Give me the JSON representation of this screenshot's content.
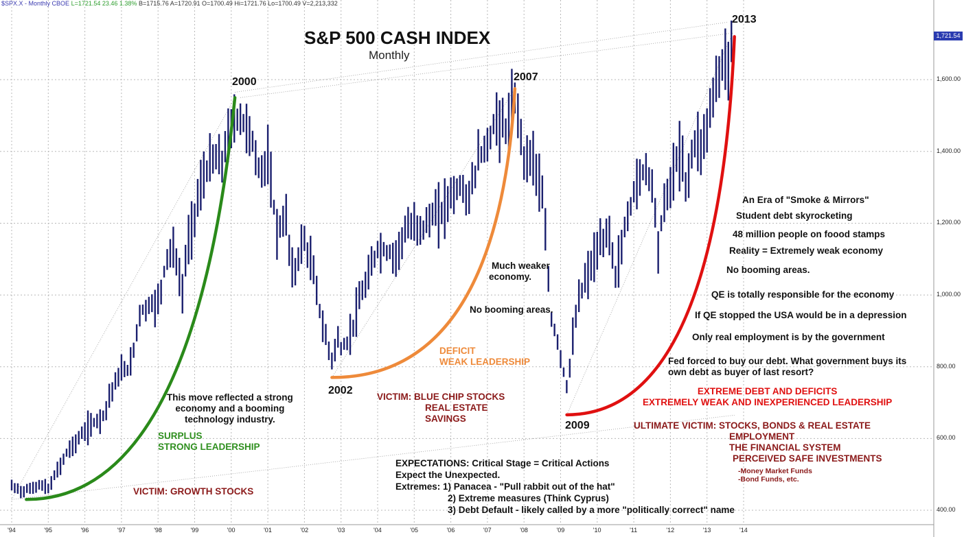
{
  "header": {
    "symbol": "$SPX.X - Monthly",
    "exchange": "CBOE",
    "change": "L=1721.54  23.46  1.38%",
    "values": "B=1715.76  A=1720.91  O=1700.49  Hi=1721.76  Lo=1700.49  V=2,213,332"
  },
  "chart_data": {
    "type": "bar",
    "title": "S&P 500 CASH INDEX",
    "subtitle": "Monthly",
    "ylim": [
      370,
      1760
    ],
    "xlim": [
      1993.95,
      2014.15
    ],
    "y_ticks": [
      "400.00",
      "600.00",
      "800.00",
      "1,000.00",
      "1,200.00",
      "1,400.00",
      "1,600.00"
    ],
    "x_ticks": [
      "'94",
      "'95",
      "'96",
      "'97",
      "'98",
      "'99",
      "'00",
      "'01",
      "'02",
      "'03",
      "'04",
      "'05",
      "'06",
      "'07",
      "'08",
      "'09",
      "'10",
      "'11",
      "'12",
      "'13",
      "'14"
    ],
    "last_price": "1,721.54",
    "series": [
      {
        "values": [
          [
            1994.0,
            466
          ],
          [
            1994.25,
            455
          ],
          [
            1994.5,
            458
          ],
          [
            1994.75,
            472
          ],
          [
            1995.0,
            459
          ],
          [
            1995.25,
            510
          ],
          [
            1995.5,
            560
          ],
          [
            1995.75,
            590
          ],
          [
            1996.0,
            620
          ],
          [
            1996.25,
            645
          ],
          [
            1996.5,
            665
          ],
          [
            1996.75,
            740
          ],
          [
            1997.0,
            786
          ],
          [
            1997.25,
            800
          ],
          [
            1997.5,
            950
          ],
          [
            1997.75,
            970
          ],
          [
            1998.0,
            980
          ],
          [
            1998.25,
            1110
          ],
          [
            1998.42,
            1130
          ],
          [
            1998.67,
            1000
          ],
          [
            1998.75,
            1100
          ],
          [
            1999.0,
            1230
          ],
          [
            1999.25,
            1330
          ],
          [
            1999.5,
            1380
          ],
          [
            1999.75,
            1370
          ],
          [
            2000.0,
            1470
          ],
          [
            2000.2,
            1500
          ],
          [
            2000.5,
            1455
          ],
          [
            2000.75,
            1350
          ],
          [
            2001.0,
            1370
          ],
          [
            2001.25,
            1180
          ],
          [
            2001.5,
            1210
          ],
          [
            2001.7,
            1040
          ],
          [
            2001.9,
            1140
          ],
          [
            2002.0,
            1150
          ],
          [
            2002.25,
            1060
          ],
          [
            2002.5,
            910
          ],
          [
            2002.75,
            820
          ],
          [
            2002.9,
            880
          ],
          [
            2003.0,
            850
          ],
          [
            2003.2,
            870
          ],
          [
            2003.5,
            980
          ],
          [
            2003.75,
            1050
          ],
          [
            2004.0,
            1130
          ],
          [
            2004.25,
            1120
          ],
          [
            2004.5,
            1110
          ],
          [
            2004.75,
            1180
          ],
          [
            2005.0,
            1190
          ],
          [
            2005.25,
            1190
          ],
          [
            2005.5,
            1220
          ],
          [
            2005.75,
            1230
          ],
          [
            2006.0,
            1280
          ],
          [
            2006.25,
            1300
          ],
          [
            2006.5,
            1270
          ],
          [
            2006.75,
            1380
          ],
          [
            2007.0,
            1420
          ],
          [
            2007.25,
            1490
          ],
          [
            2007.5,
            1460
          ],
          [
            2007.75,
            1540
          ],
          [
            2007.9,
            1470
          ],
          [
            2008.0,
            1380
          ],
          [
            2008.25,
            1390
          ],
          [
            2008.5,
            1270
          ],
          [
            2008.75,
            930
          ],
          [
            2008.9,
            880
          ],
          [
            2009.0,
            830
          ],
          [
            2009.17,
            740
          ],
          [
            2009.33,
            870
          ],
          [
            2009.5,
            990
          ],
          [
            2009.75,
            1060
          ],
          [
            2010.0,
            1120
          ],
          [
            2010.33,
            1180
          ],
          [
            2010.5,
            1050
          ],
          [
            2010.75,
            1180
          ],
          [
            2011.0,
            1290
          ],
          [
            2011.33,
            1360
          ],
          [
            2011.5,
            1310
          ],
          [
            2011.67,
            1140
          ],
          [
            2011.83,
            1250
          ],
          [
            2012.0,
            1310
          ],
          [
            2012.25,
            1400
          ],
          [
            2012.42,
            1310
          ],
          [
            2012.67,
            1430
          ],
          [
            2012.9,
            1420
          ],
          [
            2013.0,
            1480
          ],
          [
            2013.25,
            1590
          ],
          [
            2013.42,
            1640
          ],
          [
            2013.58,
            1660
          ],
          [
            2013.7,
            1721
          ]
        ]
      }
    ],
    "annotations": {
      "years": [
        "2000",
        "2007",
        "2013",
        "2002",
        "2009"
      ],
      "left_text": [
        "This move reflected a strong",
        "economy and a booming",
        "technology industry."
      ],
      "surplus": [
        "SURPLUS",
        "STRONG LEADERSHIP"
      ],
      "victim_growth": "VICTIM:  GROWTH STOCKS",
      "deficit": [
        "DEFICIT",
        "WEAK LEADERSHIP"
      ],
      "victim_bluechip": [
        "VICTIM:  BLUE CHIP STOCKS",
        "REAL ESTATE",
        "SAVINGS"
      ],
      "much_weaker": [
        "Much weaker",
        "economy."
      ],
      "no_booming_1": "No booming areas.",
      "right_list": [
        "An Era of \"Smoke & Mirrors\"",
        "Student debt skyrocketing",
        "48 million people on foood stamps",
        "Reality = Extremely weak economy",
        "No booming areas.",
        "QE is totally responsible for the economy",
        "If QE stopped the USA would be in a depression",
        "Only real employment is by the government",
        "Fed forced to buy our debt. What government buys its",
        "own debt as buyer of last resort?"
      ],
      "extreme_red": [
        "EXTREME DEBT AND DEFICITS",
        "EXTREMELY WEAK AND INEXPERIENCED LEADERSHIP"
      ],
      "ultimate_victim": [
        "ULTIMATE VICTIM:  STOCKS, BONDS & REAL ESTATE",
        "EMPLOYMENT",
        "THE FINANCIAL SYSTEM",
        "PERCEIVED SAFE INVESTMENTS"
      ],
      "ultimate_small": [
        "-Money Market Funds",
        "-Bond Funds, etc."
      ],
      "expectations": [
        "EXPECTATIONS: Critical Stage = Critical Actions",
        "Expect the Unexpected.",
        "Extremes:  1) Panacea - \"Pull rabbit out of the hat\"",
        "2) Extreme measures (Think Cyprus)",
        "3) Debt Default - likely called by a more \"politically correct\" name"
      ]
    },
    "colors": {
      "bars": "#1a1f6e",
      "curve_2000": "#2a8a1a",
      "curve_2007": "#ee8a3a",
      "curve_2013": "#e01010",
      "grid": "#b8b8b8",
      "price_tag": "#2a3bb0"
    },
    "grid": true,
    "legend": "none"
  }
}
